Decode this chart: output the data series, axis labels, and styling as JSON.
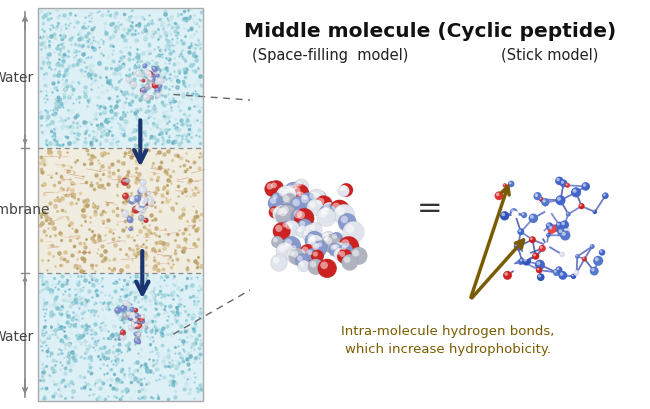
{
  "title": "Middle molecule (Cyclic peptide)",
  "subtitle_left": "(Space-filling  model)",
  "subtitle_right": "(Stick model)",
  "label_water_top": "Water",
  "label_membrane": "Membrane",
  "label_water_bottom": "Water",
  "equals_sign": "=",
  "annotation_text": "Intra-molecule hydrogen bonds,\nwhich increase hydrophobicity.",
  "bg_color": "#ffffff",
  "arrow_color": "#1a3570",
  "annotation_color": "#7a5c00",
  "title_fontsize": 14.5,
  "subtitle_fontsize": 10.5,
  "label_fontsize": 10,
  "annotation_fontsize": 9.5,
  "gray_color": "#888888",
  "border_color": "#999999",
  "dashed_color": "#777777"
}
